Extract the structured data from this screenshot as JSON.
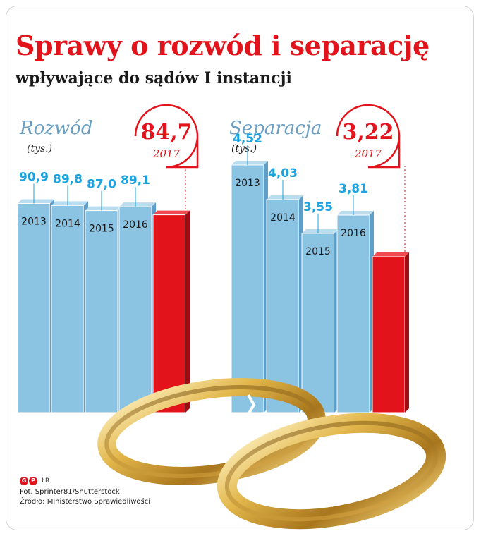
{
  "header": {
    "title": "Sprawy o rozwód i separację",
    "subtitle": "wpływające do sądów I instancji"
  },
  "colors": {
    "bar_blue": "#8bc3e2",
    "bar_highlight": "#e3131b",
    "value_label": "#1aa3e0",
    "panel_title": "#6a9fc4",
    "accent_red": "#e3131b"
  },
  "chart_data": [
    {
      "type": "bar",
      "title": "Rozwód",
      "unit": "(tys.)",
      "categories": [
        "2013",
        "2014",
        "2015",
        "2016",
        "2017"
      ],
      "values": [
        90.9,
        89.8,
        87.0,
        89.1,
        84.7
      ],
      "value_labels": [
        "90,9",
        "89,8",
        "87,0",
        "89,1",
        "84,7"
      ],
      "highlight": {
        "value_label": "84,7",
        "year_label": "2017"
      }
    },
    {
      "type": "bar",
      "title": "Separacja",
      "unit": "(tys.)",
      "categories": [
        "2013",
        "2014",
        "2015",
        "2016",
        "2017"
      ],
      "values": [
        4.52,
        4.03,
        3.55,
        3.81,
        3.22
      ],
      "value_labels": [
        "4,52",
        "4,03",
        "3,55",
        "3,81",
        "3,22"
      ],
      "highlight": {
        "value_label": "3,22",
        "year_label": "2017"
      }
    }
  ],
  "image": {
    "icon": "wedding-rings-image"
  },
  "credits": {
    "logo_letters": [
      "G",
      "P"
    ],
    "author": "ŁR",
    "photo": "Fot. Sprinter81/Shutterstock",
    "source": "Źródło: Ministerstwo Sprawiedliwości"
  }
}
